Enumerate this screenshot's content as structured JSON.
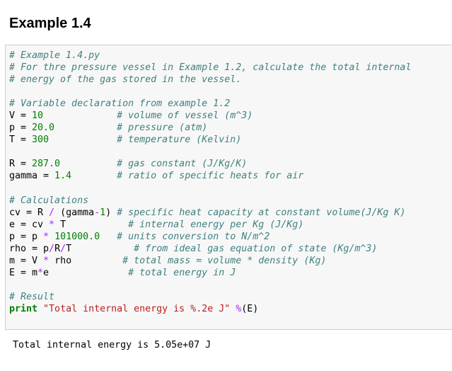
{
  "title": "Example 1.4",
  "code": {
    "language": "python",
    "colors": {
      "comment": "#408080",
      "number": "#008000",
      "operator": "#AA22FF",
      "keyword": "#008000",
      "string": "#BA2121"
    },
    "lines": [
      [
        [
          "c",
          "# Example 1.4.py"
        ]
      ],
      [
        [
          "c",
          "# For thre pressure vessel in Example 1.2, calculate the total internal"
        ]
      ],
      [
        [
          "c",
          "# energy of the gas stored in the vessel."
        ]
      ],
      [],
      [
        [
          "c",
          "# Variable declaration from example 1.2"
        ]
      ],
      [
        [
          "n",
          "V = "
        ],
        [
          "m",
          "10"
        ],
        [
          "n",
          "             "
        ],
        [
          "c",
          "# volume of vessel (m^3)"
        ]
      ],
      [
        [
          "n",
          "p = "
        ],
        [
          "m",
          "20.0"
        ],
        [
          "n",
          "           "
        ],
        [
          "c",
          "# pressure (atm)"
        ]
      ],
      [
        [
          "n",
          "T = "
        ],
        [
          "m",
          "300"
        ],
        [
          "n",
          "            "
        ],
        [
          "c",
          "# temperature (Kelvin)"
        ]
      ],
      [],
      [
        [
          "n",
          "R = "
        ],
        [
          "m",
          "287.0"
        ],
        [
          "n",
          "          "
        ],
        [
          "c",
          "# gas constant (J/Kg/K)"
        ]
      ],
      [
        [
          "n",
          "gamma = "
        ],
        [
          "m",
          "1.4"
        ],
        [
          "n",
          "        "
        ],
        [
          "c",
          "# ratio of specific heats for air"
        ]
      ],
      [],
      [
        [
          "c",
          "# Calculations"
        ]
      ],
      [
        [
          "n",
          "cv = R "
        ],
        [
          "o",
          "/"
        ],
        [
          "n",
          " (gamma"
        ],
        [
          "o",
          "-"
        ],
        [
          "m",
          "1"
        ],
        [
          "n",
          ") "
        ],
        [
          "c",
          "# specific heat capacity at constant volume(J/Kg K)"
        ]
      ],
      [
        [
          "n",
          "e = cv "
        ],
        [
          "o",
          "*"
        ],
        [
          "n",
          " T           "
        ],
        [
          "c",
          "# internal energy per Kg (J/Kg)"
        ]
      ],
      [
        [
          "n",
          "p = p "
        ],
        [
          "o",
          "*"
        ],
        [
          "n",
          " "
        ],
        [
          "m",
          "101000.0"
        ],
        [
          "n",
          "   "
        ],
        [
          "c",
          "# units conversion to N/m^2"
        ]
      ],
      [
        [
          "n",
          "rho = p"
        ],
        [
          "o",
          "/"
        ],
        [
          "n",
          "R"
        ],
        [
          "o",
          "/"
        ],
        [
          "n",
          "T           "
        ],
        [
          "c",
          "# from ideal gas equation of state (Kg/m^3)"
        ]
      ],
      [
        [
          "n",
          "m = V "
        ],
        [
          "o",
          "*"
        ],
        [
          "n",
          " rho         "
        ],
        [
          "c",
          "# total mass = volume * density (Kg)"
        ]
      ],
      [
        [
          "n",
          "E = m"
        ],
        [
          "o",
          "*"
        ],
        [
          "n",
          "e              "
        ],
        [
          "c",
          "# total energy in J"
        ]
      ],
      [],
      [
        [
          "c",
          "# Result"
        ]
      ],
      [
        [
          "k",
          "print"
        ],
        [
          "n",
          " "
        ],
        [
          "s",
          "\"Total internal energy is %.2e J\""
        ],
        [
          "n",
          " "
        ],
        [
          "o",
          "%"
        ],
        [
          "n",
          "(E)"
        ]
      ]
    ]
  },
  "output": "Total internal energy is 5.05e+07 J"
}
